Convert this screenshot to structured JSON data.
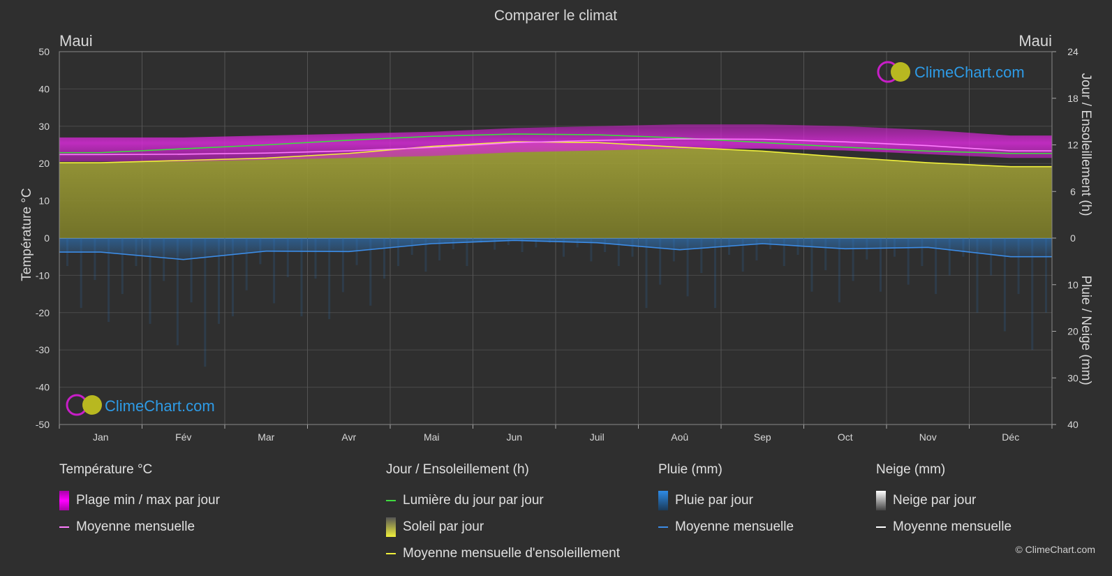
{
  "title": "Comparer le climat",
  "location_left": "Maui",
  "location_right": "Maui",
  "axis_left_label": "Température °C",
  "axis_right_top_label": "Jour / Ensoleillement (h)",
  "axis_right_bottom_label": "Pluie / Neige (mm)",
  "watermark": "ClimeChart.com",
  "copyright": "© ClimeChart.com",
  "colors": {
    "background": "#2f2f2f",
    "temp_band": "#c81ec8",
    "temp_mean": "#ff7dff",
    "daylight": "#3fdc3f",
    "sunshine_fill": "#8c8c1e",
    "sunshine_mean": "#f0f03c",
    "rain": "#2e7bc8",
    "rain_mean": "#3c8ce6",
    "snow": "#ffffff",
    "watermark": "#2e9be6"
  },
  "legend": {
    "temperature": {
      "title": "Température °C",
      "items": [
        {
          "icon": "temp-range-swatch",
          "label": "Plage min / max par jour"
        },
        {
          "icon": "temp-mean-line",
          "label": "Moyenne mensuelle"
        }
      ]
    },
    "sun": {
      "title": "Jour / Ensoleillement (h)",
      "items": [
        {
          "icon": "daylight-line",
          "label": "Lumière du jour par jour"
        },
        {
          "icon": "sunshine-swatch",
          "label": "Soleil par jour"
        },
        {
          "icon": "sunshine-mean-line",
          "label": "Moyenne mensuelle d'ensoleillement"
        }
      ]
    },
    "rain": {
      "title": "Pluie (mm)",
      "items": [
        {
          "icon": "rain-swatch",
          "label": "Pluie par jour"
        },
        {
          "icon": "rain-mean-line",
          "label": "Moyenne mensuelle"
        }
      ]
    },
    "snow": {
      "title": "Neige (mm)",
      "items": [
        {
          "icon": "snow-swatch",
          "label": "Neige par jour"
        },
        {
          "icon": "snow-mean-line",
          "label": "Moyenne mensuelle"
        }
      ]
    }
  },
  "chart_data": {
    "type": "area",
    "title": "Comparer le climat",
    "categories": [
      "Jan",
      "Fév",
      "Mar",
      "Avr",
      "Mai",
      "Jun",
      "Juil",
      "Aoû",
      "Sep",
      "Oct",
      "Nov",
      "Déc"
    ],
    "y_left": {
      "label": "Température °C",
      "range": [
        -50,
        50
      ],
      "ticks": [
        50,
        40,
        30,
        20,
        10,
        0,
        -10,
        -20,
        -30,
        -40,
        -50
      ]
    },
    "y_right_top": {
      "label": "Jour / Ensoleillement (h)",
      "range": [
        0,
        24
      ],
      "ticks": [
        24,
        18,
        12,
        6,
        0
      ]
    },
    "y_right_bottom": {
      "label": "Pluie / Neige (mm)",
      "range": [
        0,
        40
      ],
      "ticks": [
        0,
        10,
        20,
        30,
        40
      ]
    },
    "grid": true,
    "series": [
      {
        "name": "Plage min / max par jour",
        "unit": "°C",
        "min": [
          20.5,
          20.5,
          21.0,
          21.5,
          22.0,
          23.0,
          23.5,
          24.0,
          24.0,
          23.5,
          22.5,
          21.5
        ],
        "max": [
          27.0,
          27.0,
          27.5,
          28.0,
          28.5,
          29.5,
          30.0,
          30.5,
          30.5,
          30.0,
          29.0,
          27.5
        ]
      },
      {
        "name": "Moyenne mensuelle",
        "unit": "°C",
        "values": [
          22.4,
          22.5,
          22.8,
          23.4,
          24.3,
          25.6,
          26.2,
          26.6,
          26.5,
          25.8,
          24.8,
          23.4
        ]
      },
      {
        "name": "Lumière du jour par jour",
        "unit": "h",
        "values": [
          11.0,
          11.5,
          12.0,
          12.6,
          13.1,
          13.4,
          13.3,
          12.9,
          12.3,
          11.7,
          11.2,
          10.9
        ]
      },
      {
        "name": "Moyenne mensuelle d'ensoleillement",
        "unit": "h",
        "values": [
          9.7,
          10.0,
          10.3,
          10.9,
          11.8,
          12.4,
          12.3,
          11.7,
          11.2,
          10.4,
          9.7,
          9.2
        ]
      },
      {
        "name": "Pluie par jour (moyenne mensuelle)",
        "unit": "mm",
        "values": [
          3.0,
          4.6,
          2.8,
          2.9,
          1.2,
          0.5,
          1.0,
          2.5,
          1.2,
          2.3,
          2.0,
          4.0
        ]
      },
      {
        "name": "Neige (moyenne mensuelle)",
        "unit": "mm",
        "values": [
          0,
          0,
          0,
          0,
          0,
          0,
          0,
          0,
          0,
          0,
          0,
          0
        ]
      }
    ]
  }
}
